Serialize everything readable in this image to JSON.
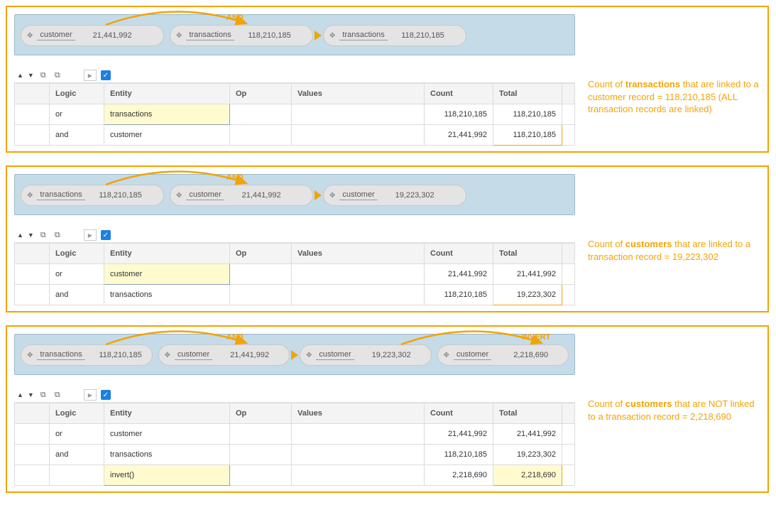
{
  "colors": {
    "accent": "#f4a300",
    "strip_bg": "#c5dbe8",
    "pill_bg": "#e4e4e4",
    "check_bg": "#1e7fe0",
    "highlight_bg": "#fffbcf"
  },
  "headers": {
    "logic": "Logic",
    "entity": "Entity",
    "op": "Op",
    "values": "Values",
    "count": "Count",
    "total": "Total"
  },
  "toolbar": {
    "play_glyph": "▶",
    "check_glyph": "✓"
  },
  "arc_ops": {
    "and": "AND",
    "invert": "INVERT"
  },
  "panels": [
    {
      "pills": [
        {
          "label": "customer",
          "value": "21,441,992"
        },
        {
          "label": "transactions",
          "value": "118,210,185"
        },
        {
          "label": "transactions",
          "value": "118,210,185"
        }
      ],
      "arcs": [
        {
          "op": "and",
          "from": 0,
          "to": 1
        }
      ],
      "rows": [
        {
          "logic": "or",
          "entity": "transactions",
          "count": "118,210,185",
          "total": "118,210,185",
          "entity_hl": true
        },
        {
          "logic": "and",
          "entity": "customer",
          "count": "21,441,992",
          "total": "118,210,185",
          "total_box": true
        }
      ],
      "note_pre": "Count of ",
      "note_bold": "transactions",
      "note_post": " that are linked to a customer record = 118,210,185  (ALL transaction records are linked)"
    },
    {
      "pills": [
        {
          "label": "transactions",
          "value": "118,210,185"
        },
        {
          "label": "customer",
          "value": "21,441,992"
        },
        {
          "label": "customer",
          "value": "19,223,302"
        }
      ],
      "arcs": [
        {
          "op": "and",
          "from": 0,
          "to": 1
        }
      ],
      "rows": [
        {
          "logic": "or",
          "entity": "customer",
          "count": "21,441,992",
          "total": "21,441,992",
          "entity_hl": true
        },
        {
          "logic": "and",
          "entity": "transactions",
          "count": "118,210,185",
          "total": "19,223,302",
          "total_box": true
        }
      ],
      "note_pre": "Count of ",
      "note_bold": "customers",
      "note_post": " that are linked to a transaction record = 19,223,302"
    },
    {
      "pills": [
        {
          "label": "transactions",
          "value": "118,210,185"
        },
        {
          "label": "customer",
          "value": "21,441,992"
        },
        {
          "label": "customer",
          "value": "19,223,302"
        },
        {
          "label": "customer",
          "value": "2,218,690"
        }
      ],
      "arcs": [
        {
          "op": "and",
          "from": 0,
          "to": 1
        },
        {
          "op": "invert",
          "from": 2,
          "to": 3
        }
      ],
      "rows": [
        {
          "logic": "or",
          "entity": "customer",
          "count": "21,441,992",
          "total": "21,441,992"
        },
        {
          "logic": "and",
          "entity": "transactions",
          "count": "118,210,185",
          "total": "19,223,302"
        },
        {
          "logic": "",
          "entity": "invert()",
          "count": "2,218,690",
          "total": "2,218,690",
          "entity_hl": true,
          "total_box": true,
          "total_hl": true
        }
      ],
      "note_pre": "Count of ",
      "note_bold": "customers",
      "note_post": " that are NOT linked to a transaction record = 2,218,690"
    }
  ]
}
